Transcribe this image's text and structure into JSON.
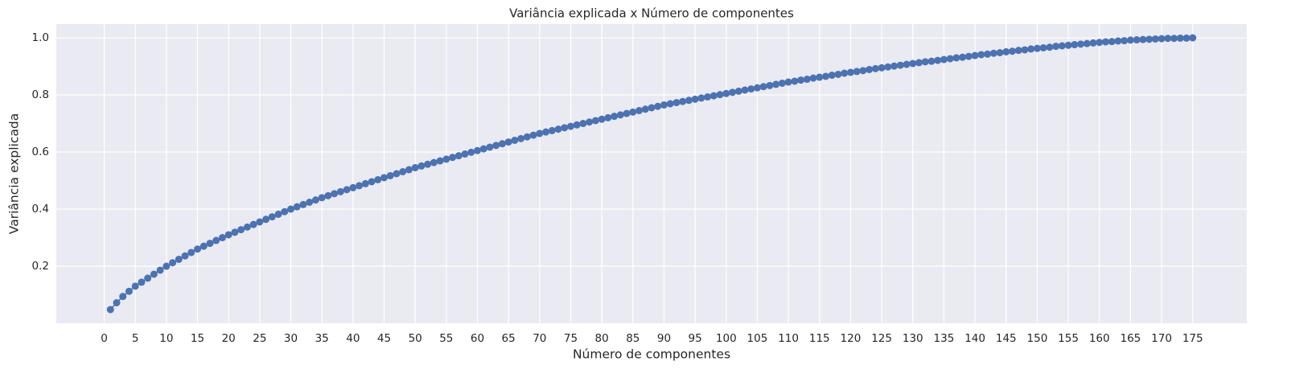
{
  "chart_data": {
    "type": "line",
    "title": "Variância explicada x Número de componentes",
    "x_label": "Número de componentes",
    "y_label": "Variância explicada",
    "color": "#4c72b0",
    "marker": true,
    "grid": true,
    "x": [
      1,
      2,
      3,
      4,
      5,
      6,
      7,
      8,
      9,
      10,
      11,
      12,
      13,
      14,
      15,
      16,
      17,
      18,
      19,
      20,
      21,
      22,
      23,
      24,
      25,
      26,
      27,
      28,
      29,
      30,
      31,
      32,
      33,
      34,
      35,
      36,
      37,
      38,
      39,
      40,
      41,
      42,
      43,
      44,
      45,
      46,
      47,
      48,
      49,
      50,
      51,
      52,
      53,
      54,
      55,
      56,
      57,
      58,
      59,
      60,
      61,
      62,
      63,
      64,
      65,
      66,
      67,
      68,
      69,
      70,
      71,
      72,
      73,
      74,
      75,
      76,
      77,
      78,
      79,
      80,
      81,
      82,
      83,
      84,
      85,
      86,
      87,
      88,
      89,
      90,
      91,
      92,
      93,
      94,
      95,
      96,
      97,
      98,
      99,
      100,
      101,
      102,
      103,
      104,
      105,
      106,
      107,
      108,
      109,
      110,
      111,
      112,
      113,
      114,
      115,
      116,
      117,
      118,
      119,
      120,
      121,
      122,
      123,
      124,
      125,
      126,
      127,
      128,
      129,
      130,
      131,
      132,
      133,
      134,
      135,
      136,
      137,
      138,
      139,
      140,
      141,
      142,
      143,
      144,
      145,
      146,
      147,
      148,
      149,
      150,
      151,
      152,
      153,
      154,
      155,
      156,
      157,
      158,
      159,
      160,
      161,
      162,
      163,
      164,
      165,
      166,
      167,
      168,
      169,
      170,
      171,
      172,
      173,
      174,
      175
    ],
    "values": [
      0.048,
      0.072,
      0.094,
      0.112,
      0.13,
      0.144,
      0.158,
      0.172,
      0.186,
      0.2,
      0.212,
      0.224,
      0.236,
      0.248,
      0.26,
      0.27,
      0.28,
      0.29,
      0.3,
      0.31,
      0.319,
      0.328,
      0.337,
      0.346,
      0.355,
      0.364,
      0.373,
      0.382,
      0.391,
      0.4,
      0.408,
      0.416,
      0.424,
      0.432,
      0.44,
      0.447,
      0.454,
      0.461,
      0.468,
      0.475,
      0.482,
      0.489,
      0.496,
      0.503,
      0.51,
      0.517,
      0.524,
      0.531,
      0.538,
      0.545,
      0.551,
      0.557,
      0.563,
      0.569,
      0.575,
      0.581,
      0.587,
      0.593,
      0.599,
      0.605,
      0.611,
      0.617,
      0.623,
      0.629,
      0.635,
      0.641,
      0.647,
      0.653,
      0.659,
      0.665,
      0.67,
      0.675,
      0.68,
      0.685,
      0.69,
      0.695,
      0.7,
      0.705,
      0.71,
      0.715,
      0.72,
      0.725,
      0.73,
      0.735,
      0.74,
      0.745,
      0.75,
      0.755,
      0.76,
      0.765,
      0.769,
      0.773,
      0.777,
      0.781,
      0.785,
      0.789,
      0.793,
      0.797,
      0.801,
      0.805,
      0.809,
      0.813,
      0.817,
      0.821,
      0.825,
      0.829,
      0.833,
      0.837,
      0.841,
      0.845,
      0.848,
      0.852,
      0.855,
      0.859,
      0.862,
      0.865,
      0.869,
      0.872,
      0.876,
      0.879,
      0.882,
      0.885,
      0.889,
      0.892,
      0.895,
      0.898,
      0.901,
      0.904,
      0.907,
      0.91,
      0.913,
      0.916,
      0.918,
      0.921,
      0.924,
      0.927,
      0.93,
      0.932,
      0.935,
      0.938,
      0.941,
      0.943,
      0.946,
      0.948,
      0.951,
      0.953,
      0.956,
      0.958,
      0.961,
      0.963,
      0.965,
      0.967,
      0.97,
      0.972,
      0.974,
      0.976,
      0.978,
      0.98,
      0.982,
      0.984,
      0.986,
      0.987,
      0.989,
      0.99,
      0.992,
      0.993,
      0.994,
      0.995,
      0.996,
      0.997,
      0.998,
      0.998,
      0.999,
      0.999,
      1.0
    ],
    "xlim": [
      -7.7,
      183.7
    ],
    "xticks": [
      0,
      5,
      10,
      15,
      20,
      25,
      30,
      35,
      40,
      45,
      50,
      55,
      60,
      65,
      70,
      75,
      80,
      85,
      90,
      95,
      100,
      105,
      110,
      115,
      120,
      125,
      130,
      135,
      140,
      145,
      150,
      155,
      160,
      165,
      170,
      175
    ],
    "ylim": [
      0.0,
      1.048
    ],
    "yticks": [
      0.2,
      0.4,
      0.6,
      0.8,
      {
        "value": 1,
        "label": "1.0"
      }
    ]
  }
}
